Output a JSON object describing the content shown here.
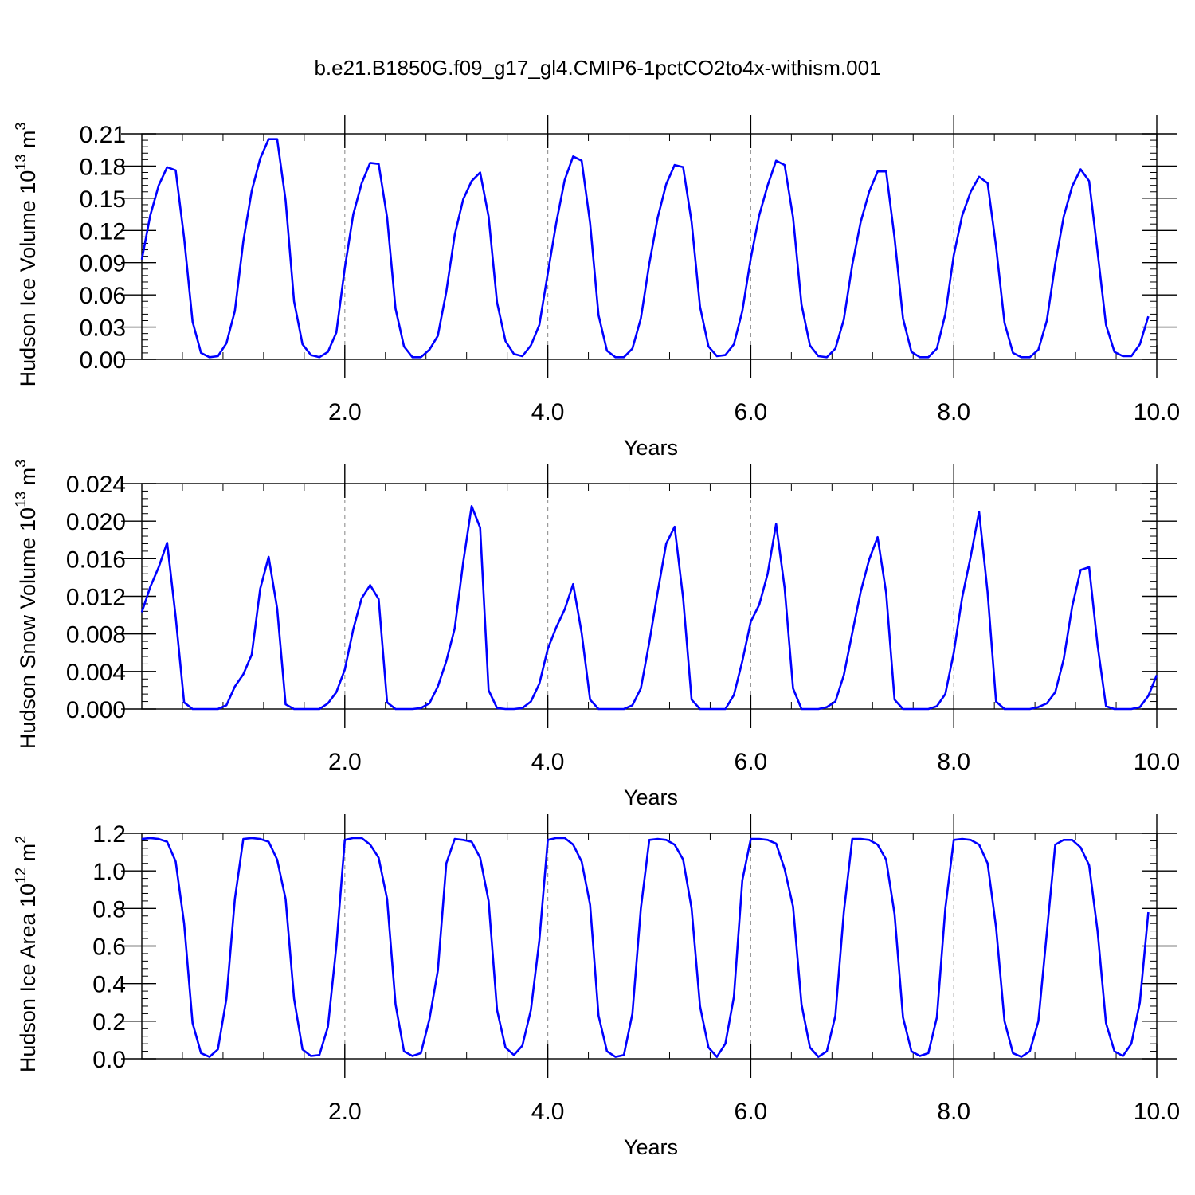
{
  "title": "b.e21.B1850G.f09_g17_gl4.CMIP6-1pctCO2to4x-withism.001",
  "line_color": "#0000ff",
  "chart_data": [
    {
      "type": "line",
      "xlabel": "Years",
      "ylabel_main": "Hudson Ice Volume 10",
      "ylabel_exp": "13",
      "ylabel_unit": " m",
      "ylabel_unit_exp": "3",
      "xlim": [
        0.0,
        10.0
      ],
      "ylim": [
        0.0,
        0.21
      ],
      "xticks": [
        2.0,
        4.0,
        6.0,
        8.0,
        10.0
      ],
      "xtick_labels": [
        "2.0",
        "4.0",
        "6.0",
        "8.0",
        "10.0"
      ],
      "yticks": [
        0.0,
        0.03,
        0.06,
        0.09,
        0.12,
        0.15,
        0.18,
        0.21
      ],
      "ytick_labels": [
        "0.00",
        "0.03",
        "0.06",
        "0.09",
        "0.12",
        "0.15",
        "0.18",
        "0.21"
      ],
      "y_minor_step": 0.006,
      "x_minor_step": 0.4,
      "gridlines_x": [
        2.0,
        4.0,
        6.0,
        8.0
      ],
      "x_start": 0.0,
      "x_step": 0.0833333,
      "values": [
        0.093,
        0.134,
        0.162,
        0.179,
        0.176,
        0.113,
        0.035,
        0.006,
        0.002,
        0.003,
        0.015,
        0.045,
        0.11,
        0.157,
        0.187,
        0.205,
        0.205,
        0.148,
        0.054,
        0.014,
        0.004,
        0.002,
        0.007,
        0.025,
        0.085,
        0.135,
        0.164,
        0.183,
        0.182,
        0.132,
        0.047,
        0.012,
        0.002,
        0.002,
        0.009,
        0.022,
        0.063,
        0.116,
        0.149,
        0.166,
        0.174,
        0.133,
        0.053,
        0.017,
        0.005,
        0.003,
        0.013,
        0.032,
        0.08,
        0.127,
        0.167,
        0.189,
        0.185,
        0.127,
        0.041,
        0.008,
        0.002,
        0.002,
        0.01,
        0.038,
        0.089,
        0.132,
        0.163,
        0.181,
        0.179,
        0.128,
        0.049,
        0.012,
        0.003,
        0.004,
        0.014,
        0.045,
        0.094,
        0.134,
        0.162,
        0.185,
        0.181,
        0.132,
        0.051,
        0.013,
        0.003,
        0.002,
        0.01,
        0.037,
        0.088,
        0.128,
        0.156,
        0.175,
        0.175,
        0.113,
        0.038,
        0.007,
        0.002,
        0.002,
        0.01,
        0.042,
        0.097,
        0.134,
        0.156,
        0.17,
        0.164,
        0.105,
        0.034,
        0.006,
        0.002,
        0.002,
        0.009,
        0.036,
        0.089,
        0.133,
        0.161,
        0.177,
        0.166,
        0.1,
        0.032,
        0.007,
        0.003,
        0.003,
        0.014,
        0.04
      ]
    },
    {
      "type": "line",
      "xlabel": "Years",
      "ylabel_main": "Hudson Snow Volume 10",
      "ylabel_exp": "13",
      "ylabel_unit": " m",
      "ylabel_unit_exp": "3",
      "xlim": [
        0.0,
        10.0
      ],
      "ylim": [
        0.0,
        0.024
      ],
      "xticks": [
        2.0,
        4.0,
        6.0,
        8.0,
        10.0
      ],
      "xtick_labels": [
        "2.0",
        "4.0",
        "6.0",
        "8.0",
        "10.0"
      ],
      "yticks": [
        0.0,
        0.004,
        0.008,
        0.012,
        0.016,
        0.02,
        0.024
      ],
      "ytick_labels": [
        "0.000",
        "0.004",
        "0.008",
        "0.012",
        "0.016",
        "0.020",
        "0.024"
      ],
      "y_minor_step": 0.0008,
      "x_minor_step": 0.4,
      "gridlines_x": [
        2.0,
        4.0,
        6.0,
        8.0
      ],
      "x_start": 0.0,
      "x_step": 0.0833333,
      "values": [
        0.0103,
        0.013,
        0.0151,
        0.0177,
        0.0098,
        0.0007,
        0.0,
        0.0,
        0.0,
        0.0,
        0.0004,
        0.0024,
        0.0037,
        0.0058,
        0.0128,
        0.0162,
        0.0107,
        0.0005,
        0.0,
        0.0,
        0.0,
        0.0,
        0.0006,
        0.0018,
        0.0042,
        0.0085,
        0.0118,
        0.0132,
        0.0117,
        0.0007,
        0.0,
        0.0,
        0.0,
        0.0001,
        0.0006,
        0.0024,
        0.0051,
        0.0086,
        0.0156,
        0.0216,
        0.0193,
        0.002,
        0.0001,
        0.0,
        0.0,
        0.0001,
        0.0008,
        0.0027,
        0.0064,
        0.0087,
        0.0106,
        0.0133,
        0.0081,
        0.001,
        0.0,
        0.0,
        0.0,
        0.0,
        0.0004,
        0.0022,
        0.0071,
        0.0125,
        0.0176,
        0.0194,
        0.0118,
        0.001,
        0.0,
        0.0,
        0.0,
        0.0,
        0.0015,
        0.0051,
        0.0093,
        0.0111,
        0.0144,
        0.0197,
        0.0129,
        0.0022,
        0.0,
        0.0,
        0.0,
        0.0002,
        0.0008,
        0.0036,
        0.0081,
        0.0125,
        0.0159,
        0.0183,
        0.0124,
        0.001,
        0.0,
        0.0,
        0.0,
        0.0,
        0.0003,
        0.0016,
        0.006,
        0.0119,
        0.0162,
        0.021,
        0.0124,
        0.0008,
        0.0,
        0.0,
        0.0,
        0.0,
        0.0002,
        0.0006,
        0.0018,
        0.0053,
        0.0109,
        0.0148,
        0.0151,
        0.0068,
        0.0003,
        0.0,
        0.0,
        0.0,
        0.0002,
        0.0014,
        0.0036
      ]
    },
    {
      "type": "line",
      "xlabel": "Years",
      "ylabel_main": "Hudson Ice Area 10",
      "ylabel_exp": "12",
      "ylabel_unit": " m",
      "ylabel_unit_exp": "2",
      "xlim": [
        0.0,
        10.0
      ],
      "ylim": [
        0.0,
        1.2
      ],
      "xticks": [
        2.0,
        4.0,
        6.0,
        8.0,
        10.0
      ],
      "xtick_labels": [
        "2.0",
        "4.0",
        "6.0",
        "8.0",
        "10.0"
      ],
      "yticks": [
        0.0,
        0.2,
        0.4,
        0.6,
        0.8,
        1.0,
        1.2
      ],
      "ytick_labels": [
        "0.0",
        "0.2",
        "0.4",
        "0.6",
        "0.8",
        "1.0",
        "1.2"
      ],
      "y_minor_step": 0.04,
      "x_minor_step": 0.4,
      "gridlines_x": [
        2.0,
        4.0,
        6.0,
        8.0
      ],
      "x_start": 0.0,
      "x_step": 0.0833333,
      "values": [
        1.17,
        1.175,
        1.17,
        1.155,
        1.05,
        0.72,
        0.19,
        0.03,
        0.01,
        0.05,
        0.32,
        0.85,
        1.17,
        1.175,
        1.17,
        1.155,
        1.06,
        0.85,
        0.32,
        0.05,
        0.015,
        0.02,
        0.17,
        0.6,
        1.165,
        1.175,
        1.175,
        1.14,
        1.07,
        0.85,
        0.29,
        0.04,
        0.015,
        0.03,
        0.21,
        0.47,
        1.04,
        1.17,
        1.165,
        1.155,
        1.07,
        0.84,
        0.26,
        0.06,
        0.02,
        0.07,
        0.26,
        0.63,
        1.165,
        1.175,
        1.175,
        1.14,
        1.05,
        0.82,
        0.23,
        0.04,
        0.01,
        0.02,
        0.24,
        0.8,
        1.165,
        1.17,
        1.165,
        1.14,
        1.06,
        0.8,
        0.28,
        0.06,
        0.01,
        0.08,
        0.33,
        0.95,
        1.17,
        1.17,
        1.165,
        1.145,
        1.01,
        0.81,
        0.29,
        0.06,
        0.01,
        0.04,
        0.23,
        0.78,
        1.17,
        1.17,
        1.165,
        1.14,
        1.06,
        0.77,
        0.22,
        0.04,
        0.015,
        0.03,
        0.22,
        0.8,
        1.165,
        1.17,
        1.165,
        1.14,
        1.04,
        0.7,
        0.2,
        0.03,
        0.01,
        0.04,
        0.2,
        0.67,
        1.14,
        1.165,
        1.165,
        1.125,
        1.03,
        0.68,
        0.19,
        0.04,
        0.015,
        0.08,
        0.3,
        0.78
      ]
    }
  ]
}
